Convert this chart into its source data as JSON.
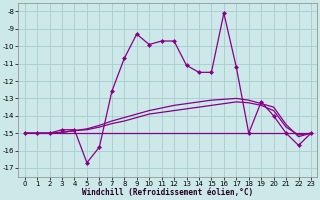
{
  "xlabel": "Windchill (Refroidissement éolien,°C)",
  "bg_color": "#cce8e8",
  "grid_color": "#aacccc",
  "line_color": "#880088",
  "xlim": [
    -0.5,
    23.5
  ],
  "ylim": [
    -17.5,
    -7.5
  ],
  "ytick_vals": [
    -17,
    -16,
    -15,
    -14,
    -13,
    -12,
    -11,
    -10,
    -9,
    -8
  ],
  "xtick_vals": [
    0,
    1,
    2,
    3,
    4,
    5,
    6,
    7,
    8,
    9,
    10,
    11,
    12,
    13,
    14,
    15,
    16,
    17,
    18,
    19,
    20,
    21,
    22,
    23
  ],
  "main_series": [
    -15.0,
    -15.0,
    -15.0,
    -14.8,
    -14.8,
    -16.7,
    -15.8,
    -12.6,
    -10.7,
    -9.3,
    -9.9,
    -9.7,
    -9.7,
    -11.1,
    -11.5,
    -11.5,
    -8.1,
    -11.2,
    -15.0,
    -13.2,
    -14.0,
    -15.0,
    -15.7,
    -15.0
  ],
  "flat_series": [
    -15.0,
    -15.0,
    -15.0,
    -15.0,
    -15.0,
    -15.0,
    -15.0,
    -15.0,
    -15.0,
    -15.0,
    -15.0,
    -15.0,
    -15.0,
    -15.0,
    -15.0,
    -15.0,
    -15.0,
    -15.0,
    -15.0,
    -15.0,
    -15.0,
    -15.0,
    -15.0,
    -15.0
  ],
  "trend1": [
    -15.0,
    -15.0,
    -15.0,
    -14.95,
    -14.85,
    -14.75,
    -14.55,
    -14.3,
    -14.1,
    -13.9,
    -13.7,
    -13.55,
    -13.4,
    -13.3,
    -13.2,
    -13.1,
    -13.05,
    -13.0,
    -13.1,
    -13.3,
    -13.5,
    -14.5,
    -15.2,
    -15.0
  ],
  "trend2": [
    -15.0,
    -15.0,
    -15.0,
    -14.95,
    -14.85,
    -14.8,
    -14.65,
    -14.45,
    -14.3,
    -14.1,
    -13.9,
    -13.8,
    -13.7,
    -13.6,
    -13.5,
    -13.4,
    -13.3,
    -13.2,
    -13.25,
    -13.4,
    -13.7,
    -14.65,
    -15.1,
    -15.0
  ]
}
